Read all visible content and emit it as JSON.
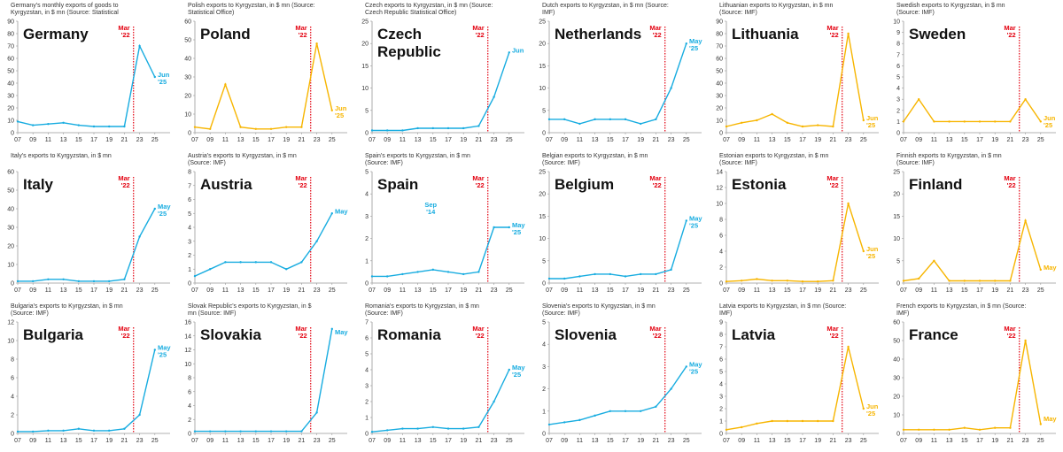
{
  "colors": {
    "blue": "#17ACE0",
    "gold": "#F7B500",
    "marker": "#E3000F"
  },
  "chart_data": [
    {
      "type": "line",
      "country": "Germany",
      "subtitle": "Germany's monthly exports of goods to Kyrgyzstan, in $ mn (Source: Statistical Office)",
      "ylim": [
        0,
        90
      ],
      "yticks": [
        0,
        10,
        20,
        30,
        40,
        50,
        60,
        70,
        80,
        90
      ],
      "xticks": [
        "07",
        "09",
        "11",
        "13",
        "15",
        "17",
        "19",
        "21",
        "23",
        "25"
      ],
      "marker_label": "Mar '22",
      "end_label": "Jun '25",
      "color": "blue",
      "series": [
        {
          "x": [
            "07",
            "09",
            "11",
            "13",
            "15",
            "17",
            "19",
            "21",
            "23",
            "25"
          ],
          "y": [
            9,
            6,
            7,
            8,
            6,
            5,
            5,
            5,
            70,
            45
          ]
        }
      ]
    },
    {
      "type": "line",
      "country": "Poland",
      "subtitle": "Polish exports to Kyrgyzstan, in $ mn (Source: Statistical Office)",
      "ylim": [
        0,
        60
      ],
      "yticks": [
        0,
        10,
        20,
        30,
        40,
        50,
        60
      ],
      "xticks": [
        "07",
        "09",
        "11",
        "13",
        "15",
        "17",
        "19",
        "21",
        "23",
        "25"
      ],
      "marker_label": "Mar '22",
      "end_label": "Jun '25",
      "color": "gold",
      "series": [
        {
          "x": [
            "07",
            "09",
            "11",
            "13",
            "15",
            "17",
            "19",
            "21",
            "23",
            "25"
          ],
          "y": [
            3,
            2,
            26,
            3,
            2,
            2,
            3,
            3,
            48,
            12
          ]
        }
      ]
    },
    {
      "type": "line",
      "country": "Czech Republic",
      "subtitle": "Czech exports to Kyrgyzstan, in $ mn (Source: Czech Republic Statistical Office)",
      "ylim": [
        0,
        25
      ],
      "yticks": [
        0,
        5,
        10,
        15,
        20,
        25
      ],
      "xticks": [
        "07",
        "09",
        "11",
        "13",
        "15",
        "17",
        "19",
        "21",
        "23",
        "25"
      ],
      "marker_label": "Mar '22",
      "end_label": "Jun",
      "color": "blue",
      "series": [
        {
          "x": [
            "07",
            "09",
            "11",
            "13",
            "15",
            "17",
            "19",
            "21",
            "23",
            "25"
          ],
          "y": [
            0.5,
            0.5,
            0.5,
            1,
            1,
            1,
            1,
            1.5,
            8,
            18
          ]
        }
      ]
    },
    {
      "type": "line",
      "country": "Netherlands",
      "subtitle": "Dutch exports to Kyrgyzstan, in $ mn (Source: IMF)",
      "ylim": [
        0,
        25
      ],
      "yticks": [
        0,
        5,
        10,
        15,
        20,
        25
      ],
      "xticks": [
        "07",
        "09",
        "11",
        "13",
        "15",
        "17",
        "19",
        "21",
        "23",
        "25"
      ],
      "marker_label": "Mar '22",
      "end_label": "May '25",
      "color": "blue",
      "series": [
        {
          "x": [
            "07",
            "09",
            "11",
            "13",
            "15",
            "17",
            "19",
            "21",
            "23",
            "25"
          ],
          "y": [
            3,
            3,
            2,
            3,
            3,
            3,
            2,
            3,
            10,
            20
          ]
        }
      ]
    },
    {
      "type": "line",
      "country": "Lithuania",
      "subtitle": "Lithuanian exports to Kyrgyzstan, in $ mn (Source: IMF)",
      "ylim": [
        0,
        90
      ],
      "yticks": [
        0,
        10,
        20,
        30,
        40,
        50,
        60,
        70,
        80,
        90
      ],
      "xticks": [
        "07",
        "09",
        "11",
        "13",
        "15",
        "17",
        "19",
        "21",
        "23",
        "25"
      ],
      "marker_label": "Mar '22",
      "end_label": "Jun '25",
      "color": "gold",
      "series": [
        {
          "x": [
            "07",
            "09",
            "11",
            "13",
            "15",
            "17",
            "19",
            "21",
            "23",
            "25"
          ],
          "y": [
            5,
            8,
            10,
            15,
            8,
            5,
            6,
            5,
            80,
            10
          ]
        }
      ]
    },
    {
      "type": "line",
      "country": "Sweden",
      "subtitle": "Swedish exports to Kyrgyzstan, in $ mn (Source: IMF)",
      "ylim": [
        0,
        10
      ],
      "yticks": [
        0,
        1,
        2,
        3,
        4,
        5,
        6,
        7,
        8,
        9,
        10
      ],
      "xticks": [
        "07",
        "09",
        "11",
        "13",
        "15",
        "17",
        "19",
        "21",
        "23",
        "25"
      ],
      "marker_label": "Mar '22",
      "end_label": "Jun '25",
      "color": "gold",
      "series": [
        {
          "x": [
            "07",
            "09",
            "11",
            "13",
            "15",
            "17",
            "19",
            "21",
            "23",
            "25"
          ],
          "y": [
            1,
            3,
            1,
            1,
            1,
            1,
            1,
            1,
            3,
            1
          ]
        }
      ]
    },
    {
      "type": "line",
      "country": "Italy",
      "subtitle": "Italy's exports to Kyrgyzstan, in $ mn",
      "ylim": [
        0,
        60
      ],
      "yticks": [
        0,
        10,
        20,
        30,
        40,
        50,
        60
      ],
      "xticks": [
        "07",
        "09",
        "11",
        "13",
        "15",
        "17",
        "19",
        "21",
        "23",
        "25"
      ],
      "marker_label": "Mar '22",
      "end_label": "May '25",
      "color": "blue",
      "series": [
        {
          "x": [
            "07",
            "09",
            "11",
            "13",
            "15",
            "17",
            "19",
            "21",
            "23",
            "25"
          ],
          "y": [
            1,
            1,
            2,
            2,
            1,
            1,
            1,
            2,
            25,
            40
          ]
        }
      ]
    },
    {
      "type": "line",
      "country": "Austria",
      "subtitle": "Austria's exports to Kyrgyzstan, in $ mn (Source: IMF)",
      "ylim": [
        0,
        8
      ],
      "yticks": [
        0,
        1,
        2,
        3,
        4,
        5,
        6,
        7,
        8
      ],
      "xticks": [
        "07",
        "09",
        "11",
        "13",
        "15",
        "17",
        "19",
        "21",
        "23",
        "25"
      ],
      "marker_label": "Mar '22",
      "end_label": "May",
      "color": "blue",
      "series": [
        {
          "x": [
            "07",
            "09",
            "11",
            "13",
            "15",
            "17",
            "19",
            "21",
            "23",
            "25"
          ],
          "y": [
            0.5,
            1,
            1.5,
            1.5,
            1.5,
            1.5,
            1,
            1.5,
            3,
            5
          ]
        }
      ]
    },
    {
      "type": "line",
      "country": "Spain",
      "subtitle": "Spain's exports to Kyrgyzstan, in $ mn (Source: IMF)",
      "ylim": [
        0,
        5
      ],
      "yticks": [
        0,
        1,
        2,
        3,
        4,
        5
      ],
      "xticks": [
        "07",
        "09",
        "11",
        "13",
        "15",
        "17",
        "19",
        "21",
        "23",
        "25"
      ],
      "marker_label": "Mar '22",
      "end_label": "May '25",
      "annotation": "Sep '14",
      "color": "blue",
      "series": [
        {
          "x": [
            "07",
            "09",
            "11",
            "13",
            "15",
            "17",
            "19",
            "21",
            "23",
            "25"
          ],
          "y": [
            0.3,
            0.3,
            0.4,
            0.5,
            0.6,
            0.5,
            0.4,
            0.5,
            2.5,
            2.5
          ]
        }
      ]
    },
    {
      "type": "line",
      "country": "Belgium",
      "subtitle": "Belgian exports to Kyrgyzstan, in $ mn (Source: IMF)",
      "ylim": [
        0,
        25
      ],
      "yticks": [
        0,
        5,
        10,
        15,
        20,
        25
      ],
      "xticks": [
        "07",
        "09",
        "11",
        "13",
        "15",
        "17",
        "19",
        "21",
        "23",
        "25"
      ],
      "marker_label": "Mar '22",
      "end_label": "May '25",
      "color": "blue",
      "series": [
        {
          "x": [
            "07",
            "09",
            "11",
            "13",
            "15",
            "17",
            "19",
            "21",
            "23",
            "25"
          ],
          "y": [
            1,
            1,
            1.5,
            2,
            2,
            1.5,
            2,
            2,
            3,
            14
          ]
        }
      ]
    },
    {
      "type": "line",
      "country": "Estonia",
      "subtitle": "Estonian exports to Kyrgyzstan, in $ mn (Source: IMF)",
      "ylim": [
        0,
        14
      ],
      "yticks": [
        0,
        2,
        4,
        6,
        8,
        10,
        12,
        14
      ],
      "xticks": [
        "07",
        "09",
        "11",
        "13",
        "15",
        "17",
        "19",
        "21",
        "23",
        "25"
      ],
      "marker_label": "Mar '22",
      "end_label": "Jun '25",
      "color": "gold",
      "series": [
        {
          "x": [
            "07",
            "09",
            "11",
            "13",
            "15",
            "17",
            "19",
            "21",
            "23",
            "25"
          ],
          "y": [
            0.2,
            0.3,
            0.5,
            0.3,
            0.3,
            0.2,
            0.2,
            0.3,
            10,
            4
          ]
        }
      ]
    },
    {
      "type": "line",
      "country": "Finland",
      "subtitle": "Finnish exports to Kyrgyzstan, in $ mn (Source: IMF)",
      "ylim": [
        0,
        25
      ],
      "yticks": [
        0,
        5,
        10,
        15,
        20,
        25
      ],
      "xticks": [
        "07",
        "09",
        "11",
        "13",
        "15",
        "17",
        "19",
        "21",
        "23",
        "25"
      ],
      "marker_label": "Mar '22",
      "end_label": "May",
      "color": "gold",
      "series": [
        {
          "x": [
            "07",
            "09",
            "11",
            "13",
            "15",
            "17",
            "19",
            "21",
            "23",
            "25"
          ],
          "y": [
            0.5,
            1,
            5,
            0.5,
            0.5,
            0.5,
            0.5,
            0.5,
            14,
            3
          ]
        }
      ]
    },
    {
      "type": "line",
      "country": "Bulgaria",
      "subtitle": "Bulgaria's exports to Kyrgyzstan, in $ mn (Source: IMF)",
      "ylim": [
        0,
        12
      ],
      "yticks": [
        0,
        2,
        4,
        6,
        8,
        10,
        12
      ],
      "xticks": [
        "07",
        "09",
        "11",
        "13",
        "15",
        "17",
        "19",
        "21",
        "23",
        "25"
      ],
      "marker_label": "Mar '22",
      "end_label": "May '25",
      "color": "blue",
      "series": [
        {
          "x": [
            "07",
            "09",
            "11",
            "13",
            "15",
            "17",
            "19",
            "21",
            "23",
            "25"
          ],
          "y": [
            0.2,
            0.2,
            0.3,
            0.3,
            0.5,
            0.3,
            0.3,
            0.5,
            2,
            9
          ]
        }
      ]
    },
    {
      "type": "line",
      "country": "Slovakia",
      "subtitle": "Slovak Republic's exports to Kyrgyzstan, in $ mn (Source: IMF)",
      "ylim": [
        0,
        16
      ],
      "yticks": [
        0,
        2,
        4,
        6,
        8,
        10,
        12,
        14,
        16
      ],
      "xticks": [
        "07",
        "09",
        "11",
        "13",
        "15",
        "17",
        "19",
        "21",
        "23",
        "25"
      ],
      "marker_label": "Mar '22",
      "end_label": "May",
      "color": "blue",
      "series": [
        {
          "x": [
            "07",
            "09",
            "11",
            "13",
            "15",
            "17",
            "19",
            "21",
            "23",
            "25"
          ],
          "y": [
            0.3,
            0.3,
            0.3,
            0.3,
            0.3,
            0.3,
            0.3,
            0.3,
            3,
            15
          ]
        }
      ]
    },
    {
      "type": "line",
      "country": "Romania",
      "subtitle": "Romania's exports to Kyrgyzstan, in $ mn (Source: IMF)",
      "ylim": [
        0,
        7
      ],
      "yticks": [
        0,
        1,
        2,
        3,
        4,
        5,
        6,
        7
      ],
      "xticks": [
        "07",
        "09",
        "11",
        "13",
        "15",
        "17",
        "19",
        "21",
        "23",
        "25"
      ],
      "marker_label": "Mar '22",
      "end_label": "May '25",
      "color": "blue",
      "series": [
        {
          "x": [
            "07",
            "09",
            "11",
            "13",
            "15",
            "17",
            "19",
            "21",
            "23",
            "25"
          ],
          "y": [
            0.1,
            0.2,
            0.3,
            0.3,
            0.4,
            0.3,
            0.3,
            0.4,
            2,
            4
          ]
        }
      ]
    },
    {
      "type": "line",
      "country": "Slovenia",
      "subtitle": "Slovenia's exports to Kyrgyzstan, in $ mn (Source: IMF)",
      "ylim": [
        0,
        5
      ],
      "yticks": [
        0,
        1,
        2,
        3,
        4,
        5
      ],
      "xticks": [
        "07",
        "09",
        "11",
        "13",
        "15",
        "17",
        "19",
        "21",
        "23",
        "25"
      ],
      "marker_label": "Mar '22",
      "end_label": "May '25",
      "color": "blue",
      "series": [
        {
          "x": [
            "07",
            "09",
            "11",
            "13",
            "15",
            "17",
            "19",
            "21",
            "23",
            "25"
          ],
          "y": [
            0.4,
            0.5,
            0.6,
            0.8,
            1,
            1,
            1,
            1.2,
            2,
            3
          ]
        }
      ]
    },
    {
      "type": "line",
      "country": "Latvia",
      "subtitle": "Latvia exports to Kyrgyzstan, in $ mn (Source: IMF)",
      "ylim": [
        0,
        9
      ],
      "yticks": [
        0,
        1,
        2,
        3,
        4,
        5,
        6,
        7,
        8,
        9
      ],
      "xticks": [
        "07",
        "09",
        "11",
        "13",
        "15",
        "17",
        "19",
        "21",
        "23",
        "25"
      ],
      "marker_label": "Mar '22",
      "end_label": "Jun '25",
      "color": "gold",
      "series": [
        {
          "x": [
            "07",
            "09",
            "11",
            "13",
            "15",
            "17",
            "19",
            "21",
            "23",
            "25"
          ],
          "y": [
            0.3,
            0.5,
            0.8,
            1,
            1,
            1,
            1,
            1,
            7,
            2
          ]
        }
      ]
    },
    {
      "type": "line",
      "country": "France",
      "subtitle": "French exports to Kyrgyzstan, in $ mn (Source: IMF)",
      "ylim": [
        0,
        60
      ],
      "yticks": [
        0,
        10,
        20,
        30,
        40,
        50,
        60
      ],
      "xticks": [
        "07",
        "09",
        "11",
        "13",
        "15",
        "17",
        "19",
        "21",
        "23",
        "25"
      ],
      "marker_label": "Mar '22",
      "end_label": "May",
      "color": "gold",
      "series": [
        {
          "x": [
            "07",
            "09",
            "11",
            "13",
            "15",
            "17",
            "19",
            "21",
            "23",
            "25"
          ],
          "y": [
            2,
            2,
            2,
            2,
            3,
            2,
            3,
            3,
            50,
            5
          ]
        }
      ]
    }
  ]
}
